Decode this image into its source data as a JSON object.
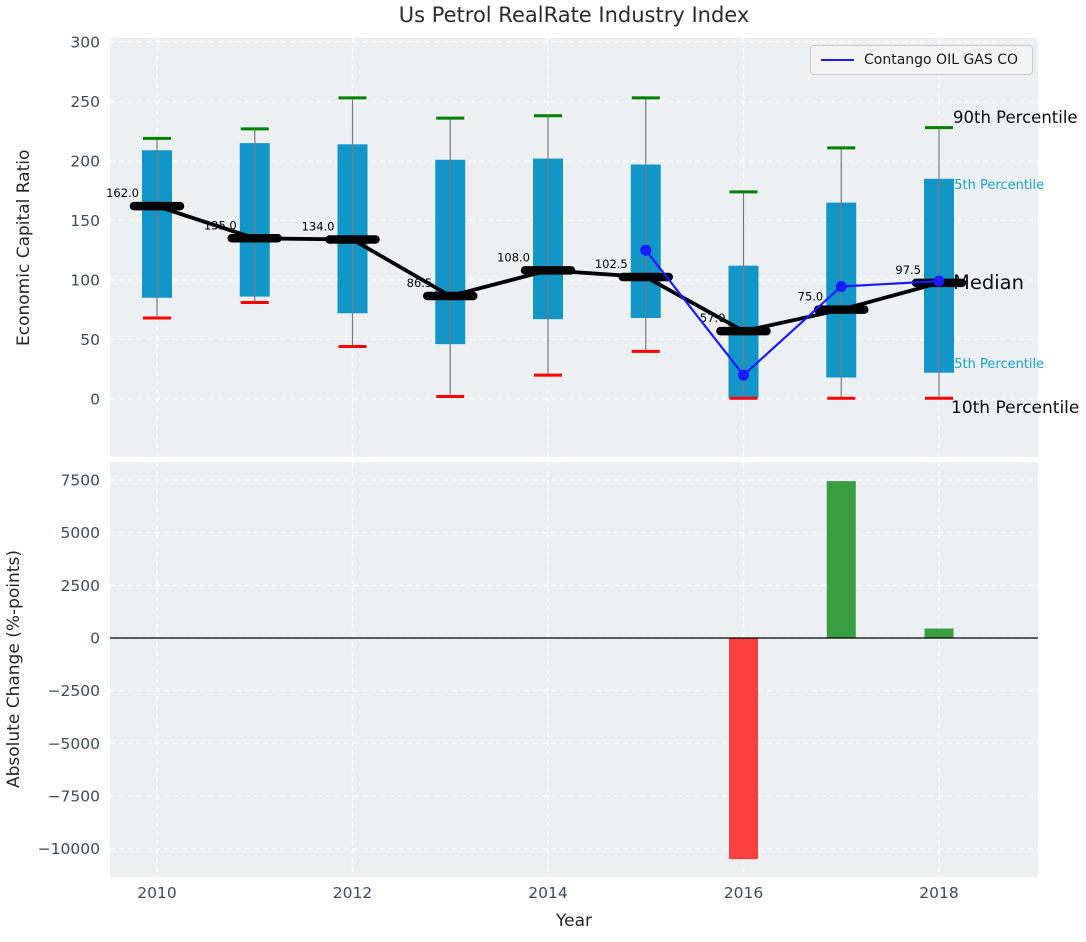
{
  "figure": {
    "title": "Us Petrol RealRate Industry Index",
    "xlabel": "Year",
    "legend": {
      "label": "Contango OIL GAS CO"
    }
  },
  "annotations": {
    "p90": "90th Percentile",
    "p75": "75th Percentile",
    "median": "Median",
    "p25": "25th Percentile",
    "p10": "10th Percentile"
  },
  "colors": {
    "panel_bg": "#edf0f2",
    "grid": "#ffffff",
    "box": "#1296c8",
    "whisker": "#7a7a7a",
    "cap_high": "#008000",
    "cap_low": "#ff0000",
    "median": "#000000",
    "company": "#1b1bff",
    "positive": "#3a9e42",
    "negative": "#fc3f3f",
    "tick_text": "#3d4c5c",
    "percentile_label_cyan": "#16a2c9",
    "annotation_black": "#0d0d0d",
    "zero_line": "#000000"
  },
  "chart_data": [
    {
      "type": "bar",
      "subtype": "percentile-box-with-lines",
      "title": "Us Petrol RealRate Industry Index",
      "ylabel": "Economic Capital Ratio",
      "x": [
        2010,
        2011,
        2012,
        2013,
        2014,
        2015,
        2016,
        2017,
        2018
      ],
      "yticks": [
        0,
        50,
        100,
        150,
        200,
        250,
        300
      ],
      "ylim": [
        -49,
        303
      ],
      "grid": "white dashed, vertical gridlines at even years",
      "legend_position": "upper right",
      "series": [
        {
          "name": "90th Percentile",
          "role": "whisker_high",
          "values": [
            219,
            227,
            253,
            236,
            238,
            253,
            174,
            211,
            228
          ]
        },
        {
          "name": "75th Percentile",
          "role": "box_top",
          "values": [
            209,
            215,
            214,
            201,
            202,
            197,
            112,
            165,
            185
          ]
        },
        {
          "name": "Median",
          "role": "median",
          "values": [
            162.0,
            135.0,
            134.0,
            86.5,
            108.0,
            102.5,
            57.0,
            75.0,
            97.5
          ],
          "labels": [
            "162.0",
            "135.0",
            "134.0",
            "86.5",
            "108.0",
            "102.5",
            "57.0",
            "75.0",
            "97.5"
          ]
        },
        {
          "name": "25th Percentile",
          "role": "box_bottom",
          "values": [
            85,
            86,
            72,
            46,
            67,
            68,
            1,
            18,
            22
          ]
        },
        {
          "name": "10th Percentile",
          "role": "whisker_low",
          "values": [
            68,
            81,
            44,
            2,
            20,
            40,
            0.5,
            0.5,
            0.5
          ]
        },
        {
          "name": "Contango OIL GAS CO",
          "role": "company_line",
          "x": [
            2015,
            2016,
            2017,
            2018
          ],
          "values": [
            125,
            20,
            94.5,
            99
          ]
        }
      ]
    },
    {
      "type": "bar",
      "ylabel": "Absolute Change (%-points)",
      "xlabel": "Year",
      "x": [
        2016,
        2017,
        2018
      ],
      "values": [
        -10500,
        7450,
        450
      ],
      "bar_signs": [
        "negative",
        "positive",
        "positive"
      ],
      "yticks": [
        7500,
        5000,
        2500,
        0,
        -2500,
        -5000,
        -7500,
        -10000
      ],
      "xticks": [
        2010,
        2012,
        2014,
        2016,
        2018
      ],
      "ylim": [
        -11350,
        8350
      ],
      "grid": "white dashed, vertical gridlines at even years, solid black zero line"
    }
  ]
}
